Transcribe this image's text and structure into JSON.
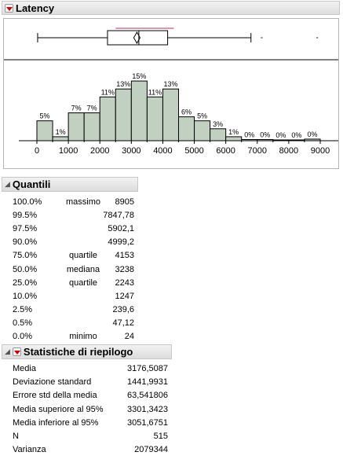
{
  "latency": {
    "title": "Latency"
  },
  "quantiles": {
    "title": "Quantili",
    "rows": [
      {
        "pct": "100.0%",
        "label": "massimo",
        "value": "8905"
      },
      {
        "pct": "99.5%",
        "label": "",
        "value": "7847,78"
      },
      {
        "pct": "97.5%",
        "label": "",
        "value": "5902,1"
      },
      {
        "pct": "90.0%",
        "label": "",
        "value": "4999,2"
      },
      {
        "pct": "75.0%",
        "label": "quartile",
        "value": "4153"
      },
      {
        "pct": "50.0%",
        "label": "mediana",
        "value": "3238"
      },
      {
        "pct": "25.0%",
        "label": "quartile",
        "value": "2243"
      },
      {
        "pct": "10.0%",
        "label": "",
        "value": "1247"
      },
      {
        "pct": "2.5%",
        "label": "",
        "value": "239,6"
      },
      {
        "pct": "0.5%",
        "label": "",
        "value": "47,12"
      },
      {
        "pct": "0.0%",
        "label": "minimo",
        "value": "24"
      }
    ]
  },
  "summary": {
    "title": "Statistiche di riepilogo",
    "rows": [
      {
        "label": "Media",
        "value": "3176,5087"
      },
      {
        "label": "Deviazione standard",
        "value": "1441,9931"
      },
      {
        "label": "Errore std della media",
        "value": "63,541806"
      },
      {
        "label": "Media superiore al 95%",
        "value": "3301,3423"
      },
      {
        "label": "Media inferiore al 95%",
        "value": "3051,6751"
      },
      {
        "label": "N",
        "value": "515"
      },
      {
        "label": "Varianza",
        "value": "2079344"
      }
    ]
  },
  "chart_data": {
    "type": "bar",
    "bin_starts": [
      0,
      500,
      1000,
      1500,
      2000,
      2500,
      3000,
      3500,
      4000,
      4500,
      5000,
      5500,
      6000,
      6500,
      7000,
      7500,
      8000,
      8500
    ],
    "bin_width": 500,
    "values": [
      5,
      1,
      7,
      7,
      11,
      13,
      15,
      11,
      13,
      6,
      5,
      3,
      1,
      0.3,
      0.3,
      0.2,
      0.2,
      0.4
    ],
    "bar_labels": [
      "5%",
      "1%",
      "7%",
      "7%",
      "11%",
      "13%",
      "15%",
      "11%",
      "13%",
      "6%",
      "5%",
      "3%",
      "1%",
      "0%",
      "0%",
      "0%",
      "0%",
      "0%"
    ],
    "x_ticks": [
      0,
      1000,
      2000,
      3000,
      4000,
      5000,
      6000,
      7000,
      8000,
      9000
    ],
    "x_tick_labels": [
      "0",
      "1000",
      "2000",
      "3000",
      "4000",
      "5000",
      "6000",
      "7000",
      "8000",
      "9000"
    ],
    "xlim": [
      -500,
      9500
    ],
    "ylim": [
      0,
      16
    ],
    "bar_color": "#c2d0c2",
    "box": {
      "min": 24,
      "q1": 2243,
      "median": 3238,
      "q3": 4153,
      "mean": 3176.5,
      "whisker_high": 6800,
      "outliers": [
        7140,
        8905
      ],
      "shortest_half": [
        2500,
        4350
      ]
    }
  }
}
